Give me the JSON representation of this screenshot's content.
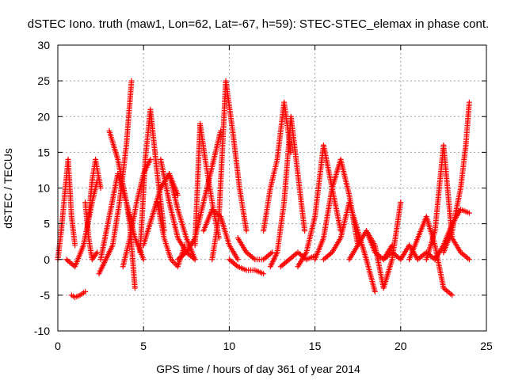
{
  "chart_data": {
    "type": "scatter",
    "title": "dSTEC Iono. truth (maw1, Lon=62, Lat=-67, h=59): STEC-STEC_elemax in phase cont.",
    "xlabel": "GPS time / hours of day 361 of year 2014",
    "ylabel": "dSTEC  / TECUs",
    "xlim": [
      0,
      25
    ],
    "ylim": [
      -10,
      30
    ],
    "x_ticks": [
      0,
      5,
      10,
      15,
      20,
      25
    ],
    "y_ticks": [
      -10,
      -5,
      0,
      5,
      10,
      15,
      20,
      25,
      30
    ],
    "grid": true,
    "marker": "+",
    "color": "#ff0000",
    "series": [
      {
        "x": [
          0.0,
          0.2,
          0.4,
          0.6,
          0.8,
          1.0
        ],
        "y": [
          0,
          4,
          9,
          14,
          6,
          2
        ]
      },
      {
        "x": [
          0.5,
          1.0,
          1.5,
          2.0,
          2.3
        ],
        "y": [
          0,
          -1,
          2,
          8,
          11
        ]
      },
      {
        "x": [
          0.8,
          1.0,
          1.3,
          1.6
        ],
        "y": [
          -5,
          -5.3,
          -5,
          -4.5
        ]
      },
      {
        "x": [
          1.6,
          1.8,
          2.0,
          2.3
        ],
        "y": [
          8,
          3,
          0,
          1
        ]
      },
      {
        "x": [
          1.8,
          2.0,
          2.2,
          2.5
        ],
        "y": [
          6,
          11,
          14,
          10
        ]
      },
      {
        "x": [
          2.4,
          2.8,
          3.2,
          3.6,
          4.0,
          4.3
        ],
        "y": [
          -2,
          0,
          2,
          8,
          16,
          25
        ]
      },
      {
        "x": [
          2.5,
          3.0,
          3.5,
          4.0,
          4.5,
          5.0
        ],
        "y": [
          0,
          6,
          12,
          8,
          3,
          0
        ]
      },
      {
        "x": [
          3.0,
          3.5,
          4.0,
          4.2,
          4.5
        ],
        "y": [
          18,
          14,
          8,
          5,
          -4
        ]
      },
      {
        "x": [
          3.8,
          4.2,
          4.6,
          5.0,
          5.4
        ],
        "y": [
          -1,
          3,
          8,
          12,
          14
        ]
      },
      {
        "x": [
          4.8,
          5.1,
          5.4,
          5.8,
          6.2
        ],
        "y": [
          1,
          14,
          21,
          12,
          4
        ]
      },
      {
        "x": [
          5.0,
          5.5,
          6.0,
          6.5,
          7.0
        ],
        "y": [
          2,
          6,
          10,
          12,
          9
        ]
      },
      {
        "x": [
          5.8,
          6.2,
          6.6,
          7.0,
          7.4
        ],
        "y": [
          8,
          3,
          0,
          -1,
          2
        ]
      },
      {
        "x": [
          6.0,
          6.5,
          7.0,
          7.5,
          8.0
        ],
        "y": [
          14,
          8,
          3,
          1,
          0
        ]
      },
      {
        "x": [
          6.5,
          7.0,
          7.5,
          8.0
        ],
        "y": [
          12,
          7,
          3,
          0
        ]
      },
      {
        "x": [
          7.0,
          7.5,
          8.0,
          8.5,
          9.0,
          9.5
        ],
        "y": [
          0,
          1,
          3,
          8,
          13,
          18
        ]
      },
      {
        "x": [
          8.0,
          8.3,
          8.6,
          9.0,
          9.4
        ],
        "y": [
          2,
          19,
          14,
          8,
          3
        ]
      },
      {
        "x": [
          8.5,
          9.0,
          9.5,
          10.0,
          10.5
        ],
        "y": [
          4,
          7,
          6,
          2,
          0
        ]
      },
      {
        "x": [
          9.0,
          9.4,
          9.8,
          10.2,
          10.6,
          11.0
        ],
        "y": [
          0,
          6,
          25,
          18,
          10,
          4
        ]
      },
      {
        "x": [
          10.0,
          10.5,
          11.0,
          11.5,
          12.0
        ],
        "y": [
          0,
          -1,
          -1.5,
          -1.5,
          -2
        ]
      },
      {
        "x": [
          10.5,
          11.0,
          11.5,
          12.0,
          12.5
        ],
        "y": [
          3,
          1,
          0,
          0,
          1
        ]
      },
      {
        "x": [
          12.0,
          12.4,
          12.8,
          13.2,
          13.6
        ],
        "y": [
          4,
          10,
          14,
          22,
          15
        ]
      },
      {
        "x": [
          12.4,
          12.8,
          13.2,
          13.6,
          14.0,
          14.4
        ],
        "y": [
          -1,
          1,
          8,
          20,
          12,
          4
        ]
      },
      {
        "x": [
          13.0,
          13.5,
          14.0,
          14.5,
          15.0
        ],
        "y": [
          -1,
          0,
          1,
          0,
          0.5
        ]
      },
      {
        "x": [
          14.0,
          14.5,
          15.0,
          15.5,
          16.0,
          16.5
        ],
        "y": [
          -1,
          1,
          6,
          16,
          10,
          4
        ]
      },
      {
        "x": [
          15.0,
          15.5,
          16.0,
          16.5,
          17.0,
          17.5
        ],
        "y": [
          0,
          3,
          10,
          14,
          9,
          2
        ]
      },
      {
        "x": [
          15.5,
          16.0,
          16.5,
          17.0,
          17.5,
          18.0,
          18.5
        ],
        "y": [
          0,
          1,
          3,
          8,
          4,
          0,
          -4.5
        ]
      },
      {
        "x": [
          17.0,
          17.5,
          18.0,
          18.5,
          19.0,
          19.5
        ],
        "y": [
          0,
          2,
          4,
          1,
          0,
          2
        ]
      },
      {
        "x": [
          18.0,
          18.5,
          19.0,
          19.5,
          20.0
        ],
        "y": [
          4,
          2,
          -4,
          0,
          8
        ]
      },
      {
        "x": [
          19.0,
          19.5,
          20.0,
          20.5,
          21.0,
          21.5,
          22.0
        ],
        "y": [
          0,
          1,
          0,
          2,
          0,
          1,
          0
        ]
      },
      {
        "x": [
          20.5,
          21.0,
          21.5,
          22.0,
          22.5,
          23.0
        ],
        "y": [
          0,
          3,
          6,
          2,
          -4,
          -5
        ]
      },
      {
        "x": [
          21.5,
          22.0,
          22.5,
          23.0,
          23.5,
          24.0
        ],
        "y": [
          0,
          4,
          16,
          3,
          1,
          0
        ]
      },
      {
        "x": [
          22.5,
          23.0,
          23.5,
          23.8,
          24.0
        ],
        "y": [
          1,
          4,
          10,
          16,
          22
        ]
      },
      {
        "x": [
          22.0,
          22.5,
          23.0,
          23.5,
          24.0
        ],
        "y": [
          0,
          2,
          5,
          7,
          6.5
        ]
      }
    ]
  }
}
